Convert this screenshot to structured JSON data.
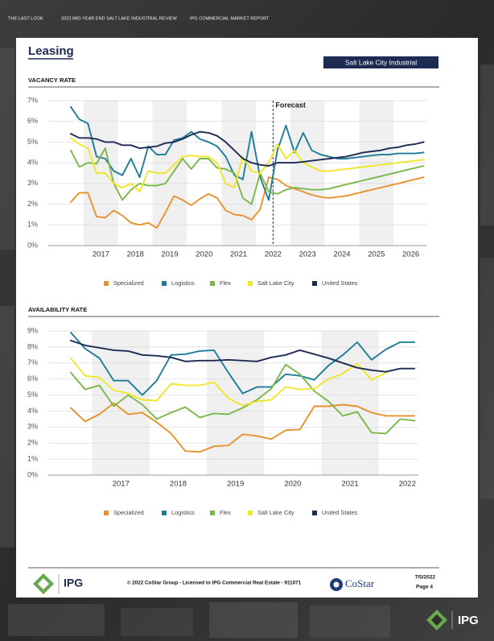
{
  "header": {
    "items": [
      "THE LAST LOOK",
      "2022 MID-YEAR END SALT LAKE INDUSTRIAL REVIEW",
      "IPG COMMERCIAL MARKET REPORT"
    ]
  },
  "title": "Leasing",
  "badge": "Salt Lake City Industrial",
  "chart_data": [
    {
      "type": "line",
      "title": "VACANCY RATE",
      "annotation": "Forecast",
      "legend": "bottom",
      "grid": true,
      "categories": [
        null,
        null,
        null,
        null,
        "2017",
        null,
        null,
        null,
        "2018",
        null,
        null,
        null,
        "2019",
        null,
        null,
        null,
        "2020",
        null,
        null,
        null,
        "2021",
        null,
        null,
        null,
        "2022",
        null,
        null,
        null,
        "2023",
        null,
        null,
        null,
        "2024",
        null,
        null,
        null,
        "2025",
        null,
        null,
        null,
        "2026",
        null
      ],
      "ylim": [
        0,
        7
      ],
      "yticks": [
        {
          "value": 0,
          "label": "0%"
        },
        {
          "value": 1,
          "label": "1%"
        },
        {
          "value": 2,
          "label": "2%"
        },
        {
          "value": 3,
          "label": "3%"
        },
        {
          "value": 4,
          "label": "4%"
        },
        {
          "value": 5,
          "label": "5%"
        },
        {
          "value": 6,
          "label": "6%"
        },
        {
          "value": 7,
          "label": "7%"
        }
      ],
      "series": [
        {
          "name": "Specialized",
          "color": "#e8922e",
          "values": [
            2.1,
            2.55,
            2.55,
            1.4,
            1.35,
            1.7,
            1.45,
            1.1,
            1.0,
            1.1,
            0.85,
            1.6,
            2.4,
            2.2,
            1.95,
            2.25,
            2.5,
            2.3,
            1.7,
            1.5,
            1.45,
            1.25,
            1.75,
            3.3,
            3.2,
            2.9,
            2.75,
            2.6,
            2.45,
            2.35,
            2.3,
            2.35,
            2.4,
            2.5,
            2.6,
            2.7,
            2.8,
            2.9,
            3.0,
            3.1,
            3.2,
            3.3
          ]
        },
        {
          "name": "Logistics",
          "color": "#1e7d96",
          "values": [
            6.7,
            6.1,
            5.9,
            4.3,
            4.2,
            3.6,
            3.4,
            4.2,
            3.3,
            4.8,
            4.4,
            4.4,
            5.1,
            5.2,
            5.5,
            5.15,
            5.0,
            4.8,
            4.3,
            3.4,
            3.2,
            5.5,
            3.3,
            2.2,
            4.6,
            5.8,
            4.5,
            5.45,
            4.6,
            4.4,
            4.3,
            4.2,
            4.2,
            4.25,
            4.3,
            4.35,
            4.4,
            4.4,
            4.45,
            4.45,
            4.45,
            4.5
          ]
        },
        {
          "name": "Flex",
          "color": "#7bb84a",
          "values": [
            4.6,
            3.8,
            4.0,
            3.95,
            4.7,
            3.0,
            2.2,
            2.7,
            3.0,
            2.9,
            2.9,
            3.0,
            3.6,
            4.2,
            3.7,
            4.2,
            4.2,
            3.75,
            3.7,
            3.5,
            2.3,
            2.0,
            3.5,
            2.6,
            2.5,
            2.7,
            2.8,
            2.75,
            2.7,
            2.7,
            2.75,
            2.85,
            2.95,
            3.05,
            3.15,
            3.25,
            3.35,
            3.45,
            3.55,
            3.65,
            3.75,
            3.85
          ]
        },
        {
          "name": "Salt Lake City",
          "color": "#f0e62a",
          "values": [
            5.2,
            4.9,
            4.7,
            3.5,
            3.5,
            3.0,
            2.8,
            3.0,
            2.6,
            3.6,
            3.5,
            3.5,
            3.9,
            4.3,
            4.35,
            4.3,
            4.3,
            4.0,
            3.0,
            2.8,
            4.3,
            3.6,
            3.5,
            4.0,
            4.9,
            4.2,
            4.6,
            4.0,
            3.8,
            3.6,
            3.6,
            3.65,
            3.7,
            3.75,
            3.8,
            3.85,
            3.9,
            3.95,
            4.0,
            4.05,
            4.1,
            4.15
          ]
        },
        {
          "name": "United States",
          "color": "#1d2a52",
          "values": [
            5.4,
            5.2,
            5.2,
            5.15,
            5.0,
            5.0,
            4.85,
            4.85,
            4.7,
            4.75,
            4.8,
            4.95,
            5.0,
            5.15,
            5.35,
            5.5,
            5.45,
            5.3,
            5.0,
            4.6,
            4.2,
            4.0,
            3.9,
            3.85,
            4.0,
            4.0,
            4.0,
            4.05,
            4.1,
            4.15,
            4.2,
            4.25,
            4.3,
            4.4,
            4.5,
            4.55,
            4.6,
            4.7,
            4.75,
            4.85,
            4.9,
            5.0
          ]
        }
      ]
    },
    {
      "type": "line",
      "title": "AVAILABILITY RATE",
      "legend": "bottom",
      "grid": true,
      "categories": [
        null,
        null,
        null,
        null,
        "2017",
        null,
        null,
        null,
        "2018",
        null,
        null,
        null,
        "2019",
        null,
        null,
        null,
        "2020",
        null,
        null,
        null,
        "2021",
        null,
        null,
        null,
        "2022"
      ],
      "ylim": [
        0,
        9
      ],
      "yticks": [
        {
          "value": 0,
          "label": "0%"
        },
        {
          "value": 1,
          "label": "1%"
        },
        {
          "value": 2,
          "label": "2%"
        },
        {
          "value": 3,
          "label": "3%"
        },
        {
          "value": 4,
          "label": "4%"
        },
        {
          "value": 5,
          "label": "5%"
        },
        {
          "value": 6,
          "label": "6%"
        },
        {
          "value": 7,
          "label": "7%"
        },
        {
          "value": 8,
          "label": "8%"
        },
        {
          "value": 9,
          "label": "9%"
        }
      ],
      "series": [
        {
          "name": "Specialized",
          "color": "#e8922e",
          "values": [
            4.2,
            3.35,
            3.8,
            4.5,
            3.8,
            3.9,
            3.3,
            2.6,
            1.5,
            1.45,
            1.8,
            1.85,
            2.55,
            2.45,
            2.25,
            2.8,
            2.85,
            4.3,
            4.3,
            4.4,
            4.3,
            3.9,
            3.7,
            3.7,
            3.7
          ]
        },
        {
          "name": "Logistics",
          "color": "#1e7d96",
          "values": [
            8.9,
            7.9,
            7.3,
            5.9,
            5.9,
            5.0,
            5.9,
            7.5,
            7.55,
            7.75,
            7.8,
            6.4,
            5.1,
            5.5,
            5.5,
            6.3,
            6.2,
            5.95,
            6.85,
            7.5,
            8.3,
            7.2,
            7.85,
            8.3,
            8.3
          ]
        },
        {
          "name": "Flex",
          "color": "#7bb84a",
          "values": [
            6.4,
            5.35,
            5.6,
            4.3,
            5.0,
            4.4,
            3.5,
            3.9,
            4.25,
            3.6,
            3.85,
            3.8,
            4.2,
            4.7,
            5.4,
            6.9,
            6.3,
            5.25,
            4.6,
            3.7,
            3.95,
            2.65,
            2.6,
            3.5,
            3.4
          ]
        },
        {
          "name": "Salt Lake City",
          "color": "#f0e62a",
          "values": [
            7.3,
            6.2,
            6.1,
            5.3,
            5.1,
            4.7,
            4.65,
            5.7,
            5.6,
            5.6,
            5.8,
            4.8,
            4.35,
            4.6,
            4.7,
            5.5,
            5.35,
            5.4,
            6.0,
            6.35,
            6.95,
            5.95,
            6.4,
            null,
            null
          ]
        },
        {
          "name": "United States",
          "color": "#1d2a52",
          "values": [
            8.4,
            8.1,
            7.95,
            7.8,
            7.75,
            7.5,
            7.45,
            7.35,
            7.1,
            7.15,
            7.15,
            7.2,
            7.15,
            7.1,
            7.35,
            7.5,
            7.8,
            7.55,
            7.3,
            7.0,
            6.7,
            6.55,
            6.45,
            6.65,
            6.65
          ]
        }
      ]
    }
  ],
  "footer": {
    "logo": "IPG",
    "copyright": "© 2022 CoStar Group - Licensed to IPG Commercial Real Estate - 911071",
    "costar": "CoStar",
    "date": "7/5/2022",
    "page": "Page 4"
  },
  "corner_logo": "IPG"
}
